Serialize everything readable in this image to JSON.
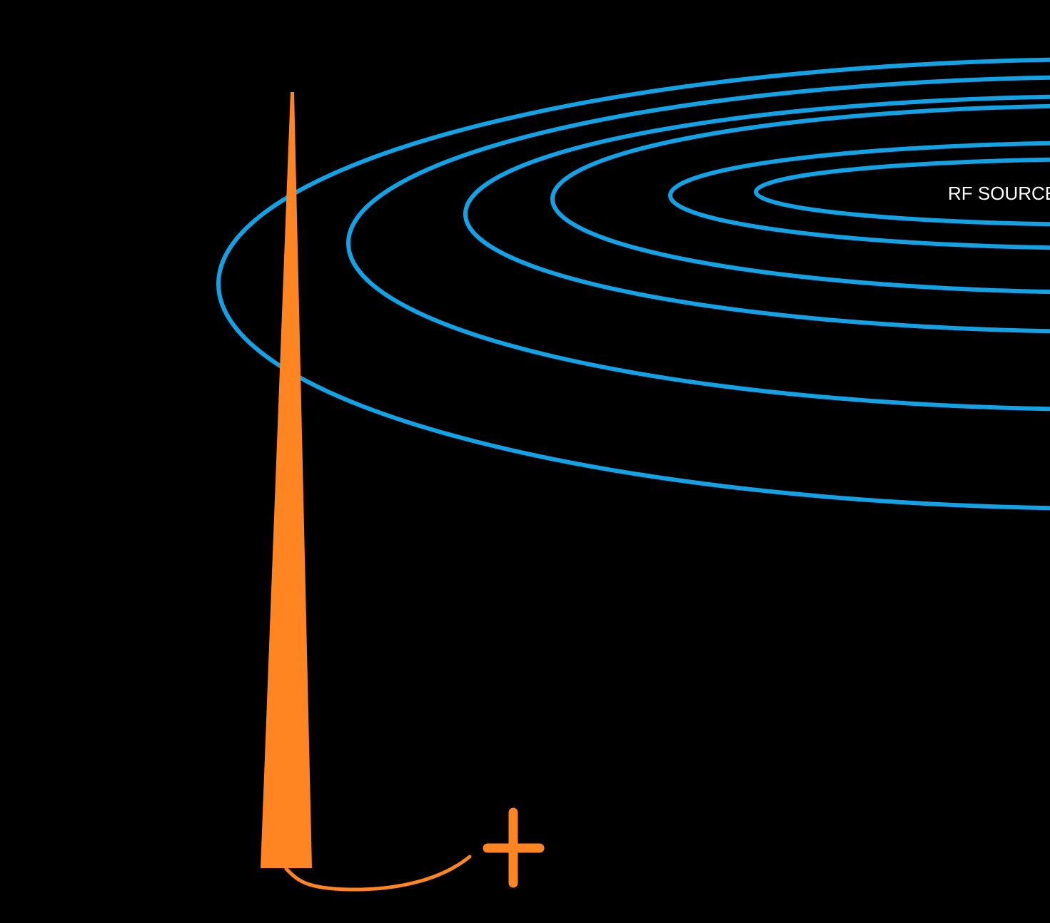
{
  "diagram": {
    "source_label": "RF SOURCE",
    "colors": {
      "background": "#000000",
      "wave": "#12a3e6",
      "antenna": "#ff8422",
      "label": "#ffffff"
    },
    "icons": {
      "antenna": "antenna-icon",
      "terminal": "plus-icon"
    }
  }
}
